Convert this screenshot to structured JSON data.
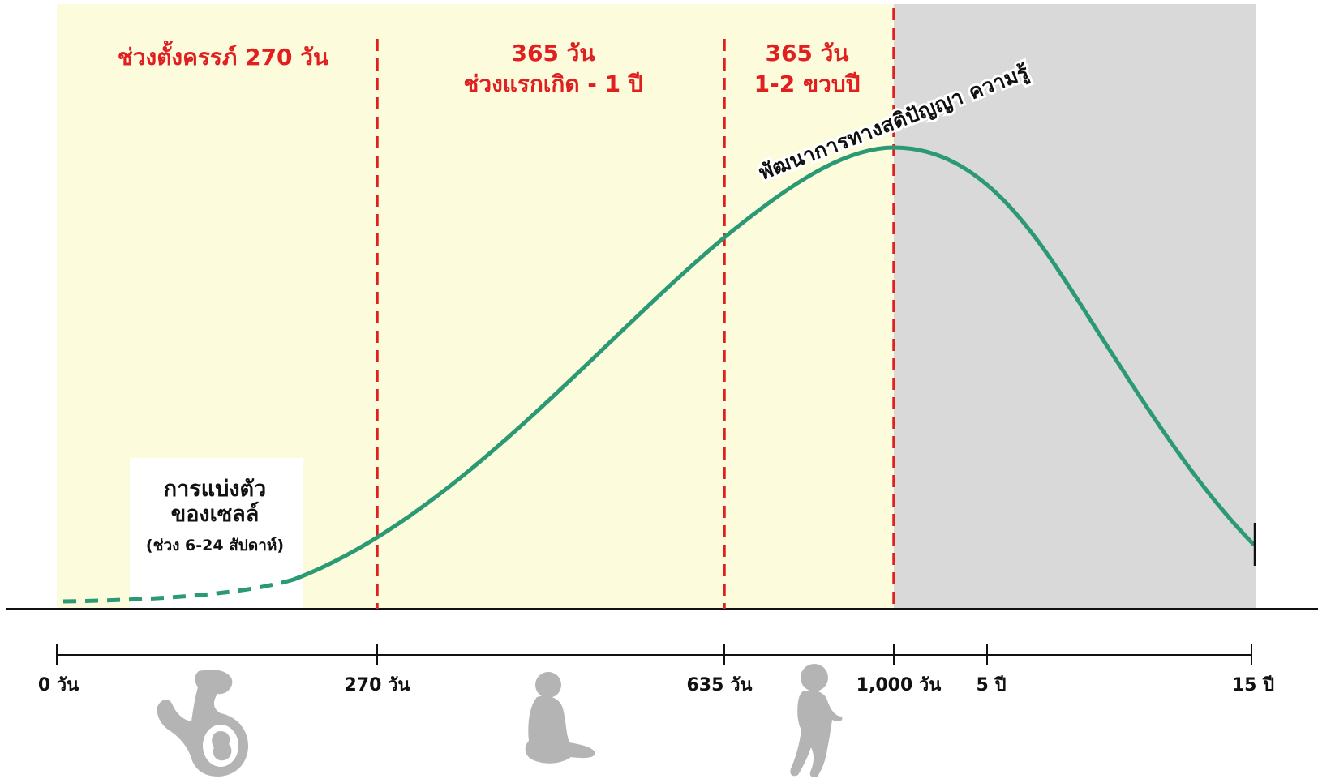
{
  "phases": [
    {
      "lines": [
        "ช่วงตั้งครรภ์ 270 วัน"
      ]
    },
    {
      "lines": [
        "365 วัน",
        "ช่วงแรกเกิด - 1 ปี"
      ]
    },
    {
      "lines": [
        "365 วัน",
        "1-2 ขวบปี"
      ]
    }
  ],
  "curve_label": "พัฒนาการทางสติปัญญา ความรู้",
  "cell_note": {
    "line1": "การแบ่งตัว",
    "line2": "ของเซลล์",
    "line3": "(ช่วง 6-24 สัปดาห์)"
  },
  "timeline": {
    "ticks": [
      "0 วัน",
      "270 วัน",
      "635 วัน",
      "1,000 วัน",
      "5 ปี",
      "15 ปี"
    ]
  },
  "icons": [
    "pregnant-woman-icon",
    "sitting-baby-icon",
    "standing-toddler-icon"
  ],
  "colors": {
    "first_1000_days_bg": "#fcfcdc",
    "after_bg": "#d9d9d9",
    "curve": "#2b9a74",
    "divider": "#e02020",
    "phase_text": "#e02020",
    "silhouette": "#b4b4b4"
  }
}
